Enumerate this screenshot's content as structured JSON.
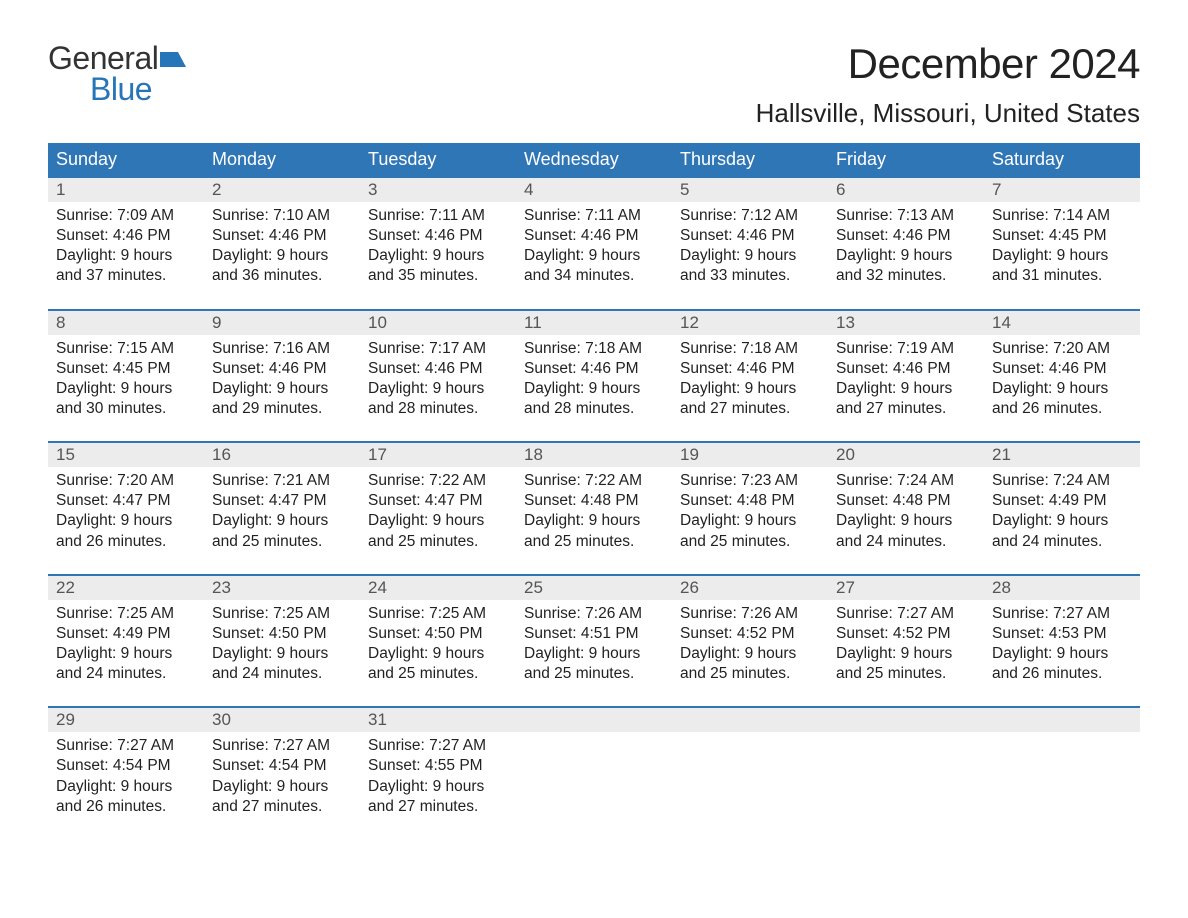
{
  "logo": {
    "word1": "General",
    "word2": "Blue",
    "flag_color": "#2675b8"
  },
  "title": "December 2024",
  "location": "Hallsville, Missouri, United States",
  "colors": {
    "header_bg": "#2f76b6",
    "header_text": "#ffffff",
    "daynum_bg": "#ececec",
    "daynum_text": "#555555",
    "body_text": "#222222",
    "rule": "#2f76b6",
    "logo_gray": "#333333",
    "logo_blue": "#2675b8",
    "page_bg": "#ffffff"
  },
  "typography": {
    "title_fontsize": 42,
    "location_fontsize": 26,
    "dayheader_fontsize": 18,
    "daynum_fontsize": 17,
    "cell_fontsize": 15.5,
    "logo_fontsize": 32
  },
  "day_headers": [
    "Sunday",
    "Monday",
    "Tuesday",
    "Wednesday",
    "Thursday",
    "Friday",
    "Saturday"
  ],
  "weeks": [
    [
      {
        "num": "1",
        "sunrise": "Sunrise: 7:09 AM",
        "sunset": "Sunset: 4:46 PM",
        "dl1": "Daylight: 9 hours",
        "dl2": "and 37 minutes."
      },
      {
        "num": "2",
        "sunrise": "Sunrise: 7:10 AM",
        "sunset": "Sunset: 4:46 PM",
        "dl1": "Daylight: 9 hours",
        "dl2": "and 36 minutes."
      },
      {
        "num": "3",
        "sunrise": "Sunrise: 7:11 AM",
        "sunset": "Sunset: 4:46 PM",
        "dl1": "Daylight: 9 hours",
        "dl2": "and 35 minutes."
      },
      {
        "num": "4",
        "sunrise": "Sunrise: 7:11 AM",
        "sunset": "Sunset: 4:46 PM",
        "dl1": "Daylight: 9 hours",
        "dl2": "and 34 minutes."
      },
      {
        "num": "5",
        "sunrise": "Sunrise: 7:12 AM",
        "sunset": "Sunset: 4:46 PM",
        "dl1": "Daylight: 9 hours",
        "dl2": "and 33 minutes."
      },
      {
        "num": "6",
        "sunrise": "Sunrise: 7:13 AM",
        "sunset": "Sunset: 4:46 PM",
        "dl1": "Daylight: 9 hours",
        "dl2": "and 32 minutes."
      },
      {
        "num": "7",
        "sunrise": "Sunrise: 7:14 AM",
        "sunset": "Sunset: 4:45 PM",
        "dl1": "Daylight: 9 hours",
        "dl2": "and 31 minutes."
      }
    ],
    [
      {
        "num": "8",
        "sunrise": "Sunrise: 7:15 AM",
        "sunset": "Sunset: 4:45 PM",
        "dl1": "Daylight: 9 hours",
        "dl2": "and 30 minutes."
      },
      {
        "num": "9",
        "sunrise": "Sunrise: 7:16 AM",
        "sunset": "Sunset: 4:46 PM",
        "dl1": "Daylight: 9 hours",
        "dl2": "and 29 minutes."
      },
      {
        "num": "10",
        "sunrise": "Sunrise: 7:17 AM",
        "sunset": "Sunset: 4:46 PM",
        "dl1": "Daylight: 9 hours",
        "dl2": "and 28 minutes."
      },
      {
        "num": "11",
        "sunrise": "Sunrise: 7:18 AM",
        "sunset": "Sunset: 4:46 PM",
        "dl1": "Daylight: 9 hours",
        "dl2": "and 28 minutes."
      },
      {
        "num": "12",
        "sunrise": "Sunrise: 7:18 AM",
        "sunset": "Sunset: 4:46 PM",
        "dl1": "Daylight: 9 hours",
        "dl2": "and 27 minutes."
      },
      {
        "num": "13",
        "sunrise": "Sunrise: 7:19 AM",
        "sunset": "Sunset: 4:46 PM",
        "dl1": "Daylight: 9 hours",
        "dl2": "and 27 minutes."
      },
      {
        "num": "14",
        "sunrise": "Sunrise: 7:20 AM",
        "sunset": "Sunset: 4:46 PM",
        "dl1": "Daylight: 9 hours",
        "dl2": "and 26 minutes."
      }
    ],
    [
      {
        "num": "15",
        "sunrise": "Sunrise: 7:20 AM",
        "sunset": "Sunset: 4:47 PM",
        "dl1": "Daylight: 9 hours",
        "dl2": "and 26 minutes."
      },
      {
        "num": "16",
        "sunrise": "Sunrise: 7:21 AM",
        "sunset": "Sunset: 4:47 PM",
        "dl1": "Daylight: 9 hours",
        "dl2": "and 25 minutes."
      },
      {
        "num": "17",
        "sunrise": "Sunrise: 7:22 AM",
        "sunset": "Sunset: 4:47 PM",
        "dl1": "Daylight: 9 hours",
        "dl2": "and 25 minutes."
      },
      {
        "num": "18",
        "sunrise": "Sunrise: 7:22 AM",
        "sunset": "Sunset: 4:48 PM",
        "dl1": "Daylight: 9 hours",
        "dl2": "and 25 minutes."
      },
      {
        "num": "19",
        "sunrise": "Sunrise: 7:23 AM",
        "sunset": "Sunset: 4:48 PM",
        "dl1": "Daylight: 9 hours",
        "dl2": "and 25 minutes."
      },
      {
        "num": "20",
        "sunrise": "Sunrise: 7:24 AM",
        "sunset": "Sunset: 4:48 PM",
        "dl1": "Daylight: 9 hours",
        "dl2": "and 24 minutes."
      },
      {
        "num": "21",
        "sunrise": "Sunrise: 7:24 AM",
        "sunset": "Sunset: 4:49 PM",
        "dl1": "Daylight: 9 hours",
        "dl2": "and 24 minutes."
      }
    ],
    [
      {
        "num": "22",
        "sunrise": "Sunrise: 7:25 AM",
        "sunset": "Sunset: 4:49 PM",
        "dl1": "Daylight: 9 hours",
        "dl2": "and 24 minutes."
      },
      {
        "num": "23",
        "sunrise": "Sunrise: 7:25 AM",
        "sunset": "Sunset: 4:50 PM",
        "dl1": "Daylight: 9 hours",
        "dl2": "and 24 minutes."
      },
      {
        "num": "24",
        "sunrise": "Sunrise: 7:25 AM",
        "sunset": "Sunset: 4:50 PM",
        "dl1": "Daylight: 9 hours",
        "dl2": "and 25 minutes."
      },
      {
        "num": "25",
        "sunrise": "Sunrise: 7:26 AM",
        "sunset": "Sunset: 4:51 PM",
        "dl1": "Daylight: 9 hours",
        "dl2": "and 25 minutes."
      },
      {
        "num": "26",
        "sunrise": "Sunrise: 7:26 AM",
        "sunset": "Sunset: 4:52 PM",
        "dl1": "Daylight: 9 hours",
        "dl2": "and 25 minutes."
      },
      {
        "num": "27",
        "sunrise": "Sunrise: 7:27 AM",
        "sunset": "Sunset: 4:52 PM",
        "dl1": "Daylight: 9 hours",
        "dl2": "and 25 minutes."
      },
      {
        "num": "28",
        "sunrise": "Sunrise: 7:27 AM",
        "sunset": "Sunset: 4:53 PM",
        "dl1": "Daylight: 9 hours",
        "dl2": "and 26 minutes."
      }
    ],
    [
      {
        "num": "29",
        "sunrise": "Sunrise: 7:27 AM",
        "sunset": "Sunset: 4:54 PM",
        "dl1": "Daylight: 9 hours",
        "dl2": "and 26 minutes."
      },
      {
        "num": "30",
        "sunrise": "Sunrise: 7:27 AM",
        "sunset": "Sunset: 4:54 PM",
        "dl1": "Daylight: 9 hours",
        "dl2": "and 27 minutes."
      },
      {
        "num": "31",
        "sunrise": "Sunrise: 7:27 AM",
        "sunset": "Sunset: 4:55 PM",
        "dl1": "Daylight: 9 hours",
        "dl2": "and 27 minutes."
      },
      {
        "num": "",
        "sunrise": "",
        "sunset": "",
        "dl1": "",
        "dl2": ""
      },
      {
        "num": "",
        "sunrise": "",
        "sunset": "",
        "dl1": "",
        "dl2": ""
      },
      {
        "num": "",
        "sunrise": "",
        "sunset": "",
        "dl1": "",
        "dl2": ""
      },
      {
        "num": "",
        "sunrise": "",
        "sunset": "",
        "dl1": "",
        "dl2": ""
      }
    ]
  ]
}
